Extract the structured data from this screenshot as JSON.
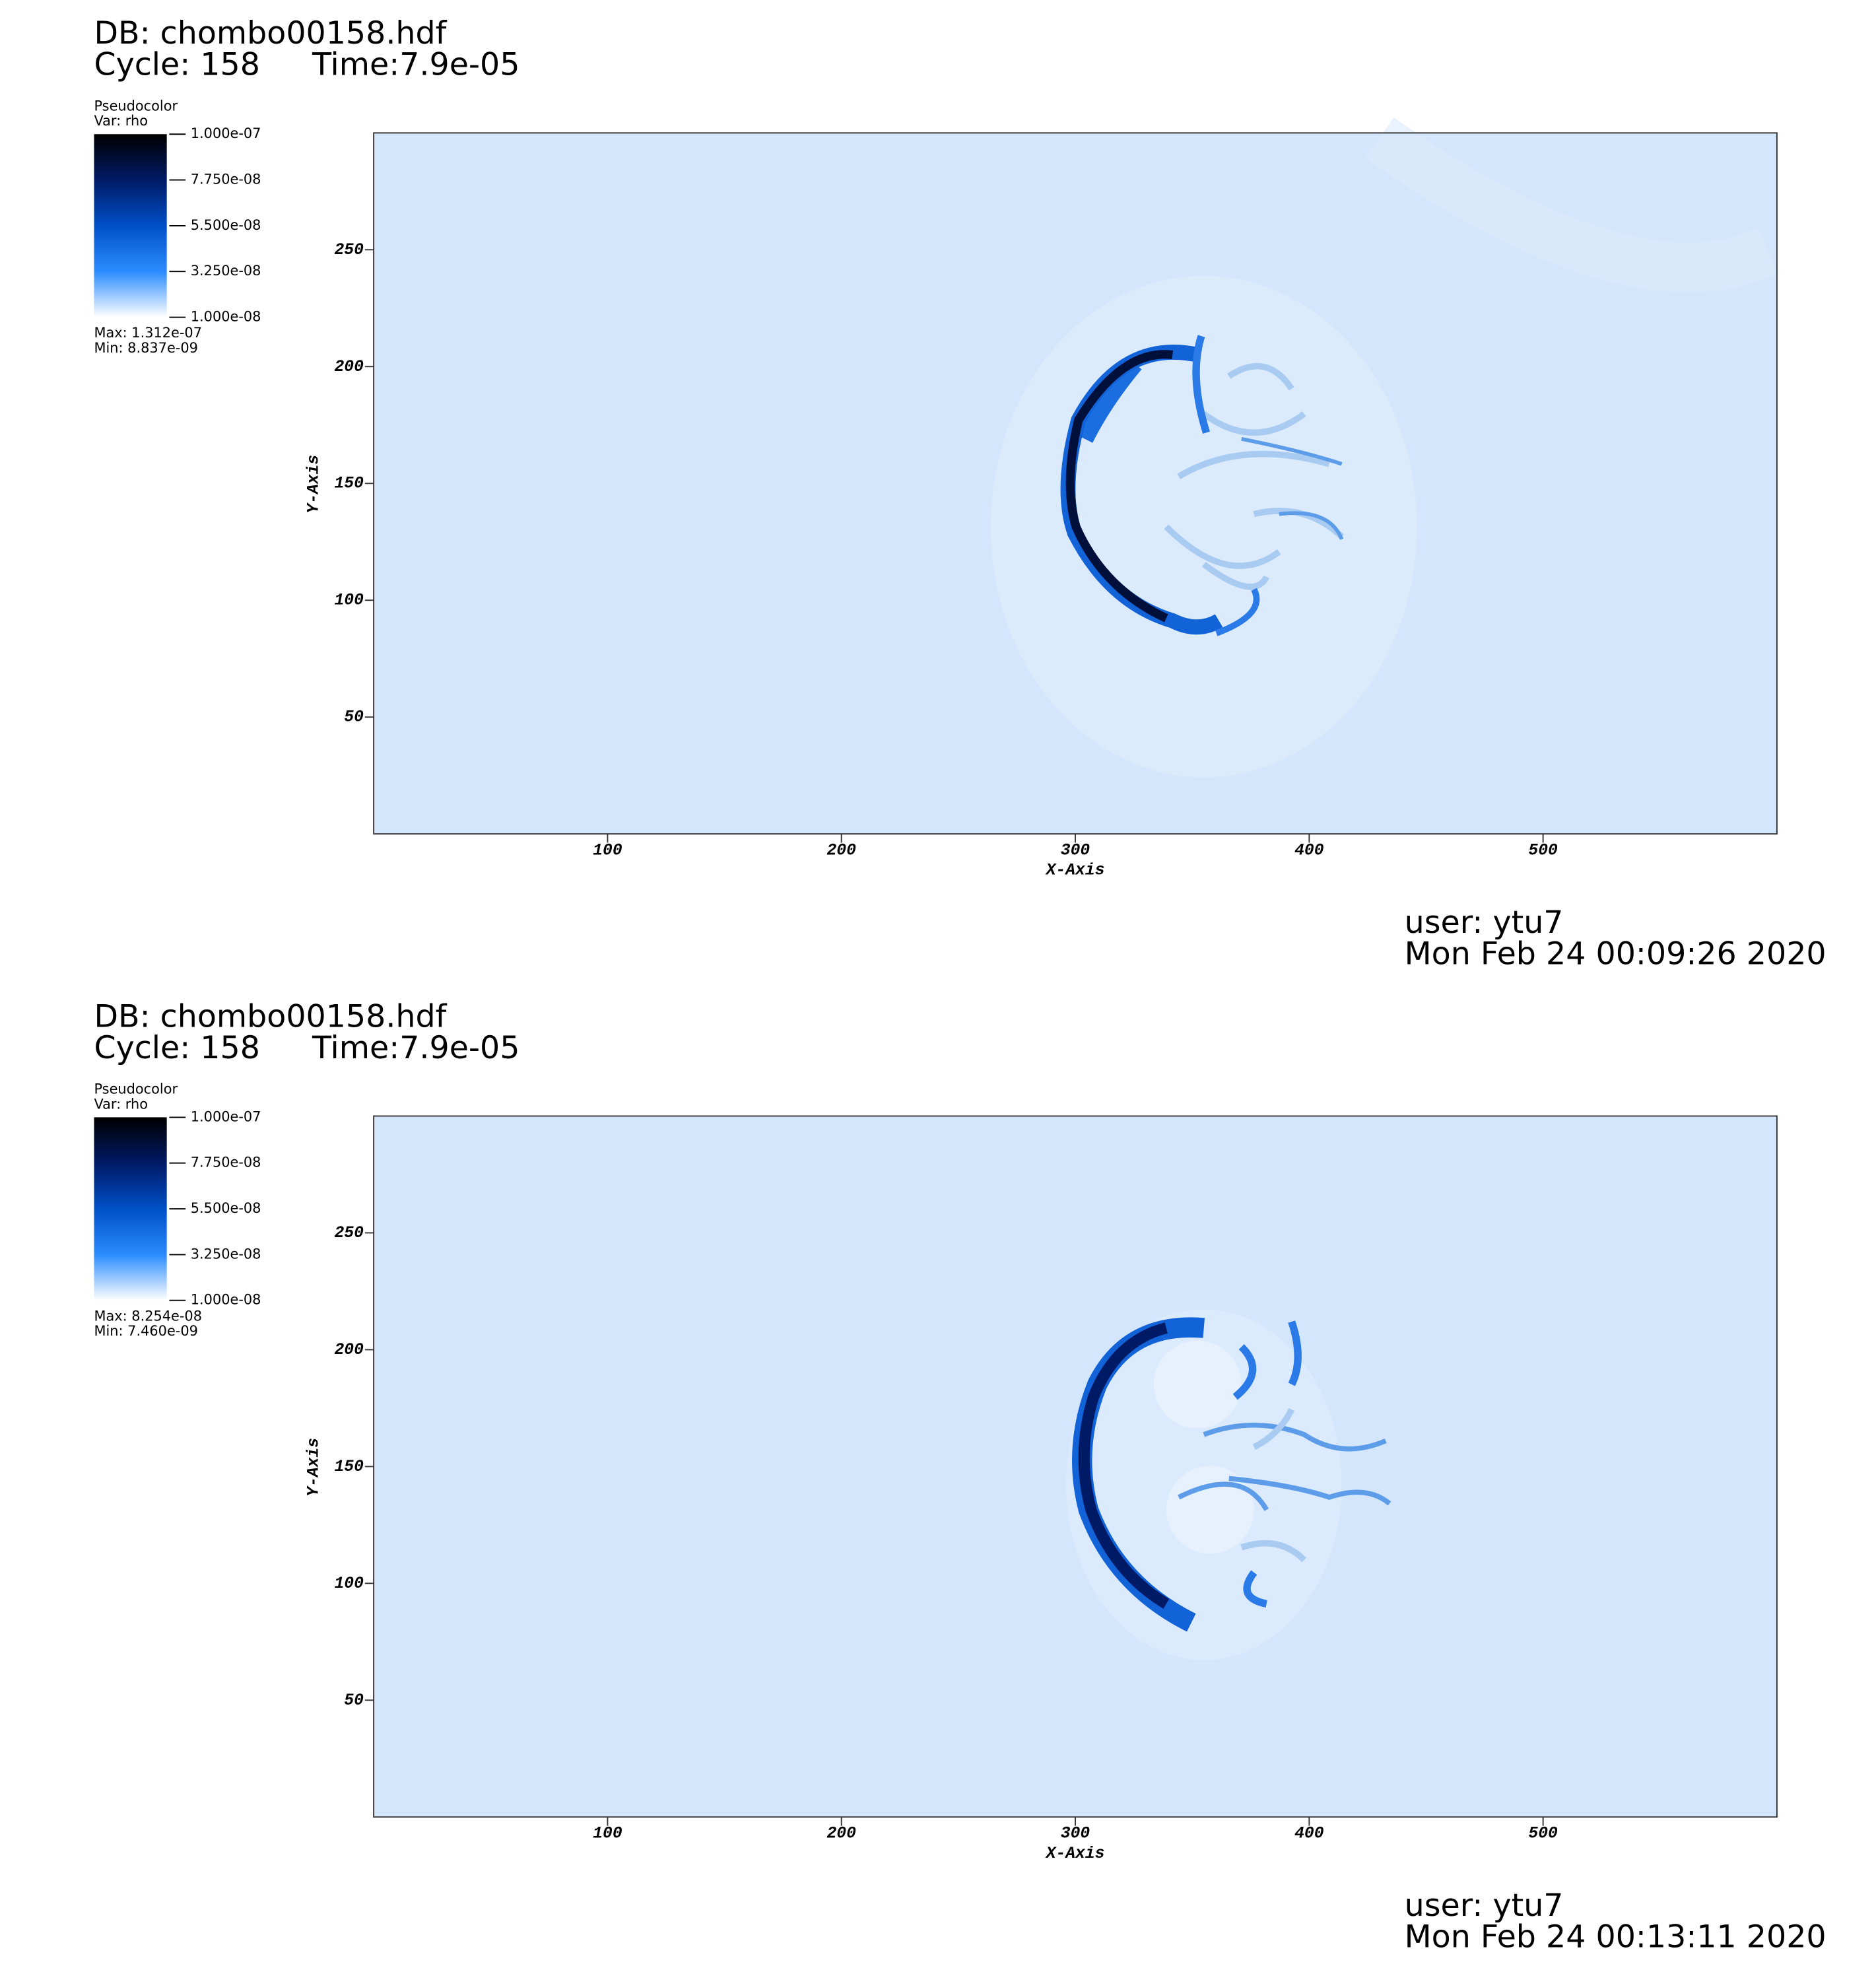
{
  "chart_data": [
    {
      "type": "pseudocolor",
      "title": "DB: chombo00158.hdf",
      "cycle": "Cycle: 158",
      "time": "Time:7.9e-05",
      "legend_title": "Pseudocolor",
      "variable": "Var: rho",
      "colorbar": {
        "range": [
          1e-08,
          1e-07
        ],
        "colors": [
          "#000000",
          "#001a66",
          "#0050c8",
          "#2a8cff",
          "#ffffff"
        ],
        "ticks": [
          {
            "value": 1e-07,
            "label": "1.000e-07"
          },
          {
            "value": 7.75e-08,
            "label": "7.750e-08"
          },
          {
            "value": 5.5e-08,
            "label": "5.500e-08"
          },
          {
            "value": 3.25e-08,
            "label": "3.250e-08"
          },
          {
            "value": 1e-08,
            "label": "1.000e-08"
          }
        ]
      },
      "max_label": "Max:  1.312e-07",
      "min_label": "Min:  8.837e-09",
      "xlabel": "X-Axis",
      "ylabel": "Y-Axis",
      "xlim": [
        0,
        600
      ],
      "ylim": [
        0,
        300
      ],
      "xticks": [
        100,
        200,
        300,
        400,
        500
      ],
      "yticks": [
        50,
        100,
        150,
        200,
        250
      ],
      "user": "user: ytu7",
      "date": "Mon Feb 24 00:09:26 2020"
    },
    {
      "type": "pseudocolor",
      "title": "DB: chombo00158.hdf",
      "cycle": "Cycle: 158",
      "time": "Time:7.9e-05",
      "legend_title": "Pseudocolor",
      "variable": "Var: rho",
      "colorbar": {
        "range": [
          1e-08,
          1e-07
        ],
        "colors": [
          "#000000",
          "#001a66",
          "#0050c8",
          "#2a8cff",
          "#ffffff"
        ],
        "ticks": [
          {
            "value": 1e-07,
            "label": "1.000e-07"
          },
          {
            "value": 7.75e-08,
            "label": "7.750e-08"
          },
          {
            "value": 5.5e-08,
            "label": "5.500e-08"
          },
          {
            "value": 3.25e-08,
            "label": "3.250e-08"
          },
          {
            "value": 1e-08,
            "label": "1.000e-08"
          }
        ]
      },
      "max_label": "Max:  8.254e-08",
      "min_label": "Min:  7.460e-09",
      "xlabel": "X-Axis",
      "ylabel": "Y-Axis",
      "xlim": [
        0,
        600
      ],
      "ylim": [
        0,
        300
      ],
      "xticks": [
        100,
        200,
        300,
        400,
        500
      ],
      "yticks": [
        50,
        100,
        150,
        200,
        250
      ],
      "user": "user: ytu7",
      "date": "Mon Feb 24 00:13:11 2020"
    }
  ]
}
